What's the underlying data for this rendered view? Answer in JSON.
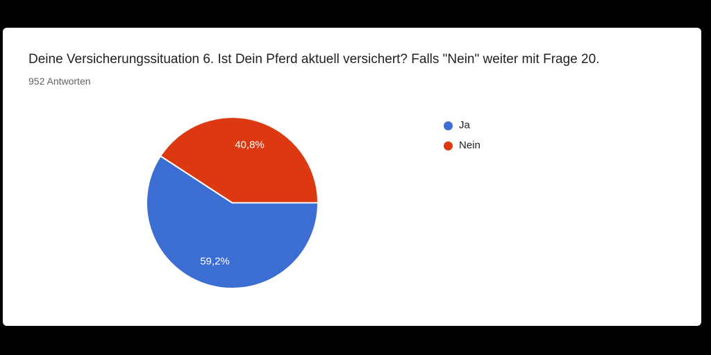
{
  "page": {
    "background_color": "#000000",
    "card_background_color": "#ffffff"
  },
  "header": {
    "title": "Deine Versicherungssituation 6. Ist Dein Pferd aktuell versichert? Falls \"Nein\" weiter mit Frage 20.",
    "subtitle": "952 Antworten"
  },
  "chart_data": {
    "type": "pie",
    "title": "Deine Versicherungssituation 6. Ist Dein Pferd aktuell versichert? Falls \"Nein\" weiter mit Frage 20.",
    "subtitle": "952 Antworten",
    "total_responses": 952,
    "legend_position": "right",
    "start_angle_deg_from_east_clockwise": 0,
    "slice_border_color": "#ffffff",
    "label_text_color": "#ffffff",
    "slices": [
      {
        "label": "Ja",
        "percent": 59.2,
        "display_percent": "59,2%",
        "color": "#3b6dd3"
      },
      {
        "label": "Nein",
        "percent": 40.8,
        "display_percent": "40,8%",
        "color": "#dc3912"
      }
    ]
  }
}
